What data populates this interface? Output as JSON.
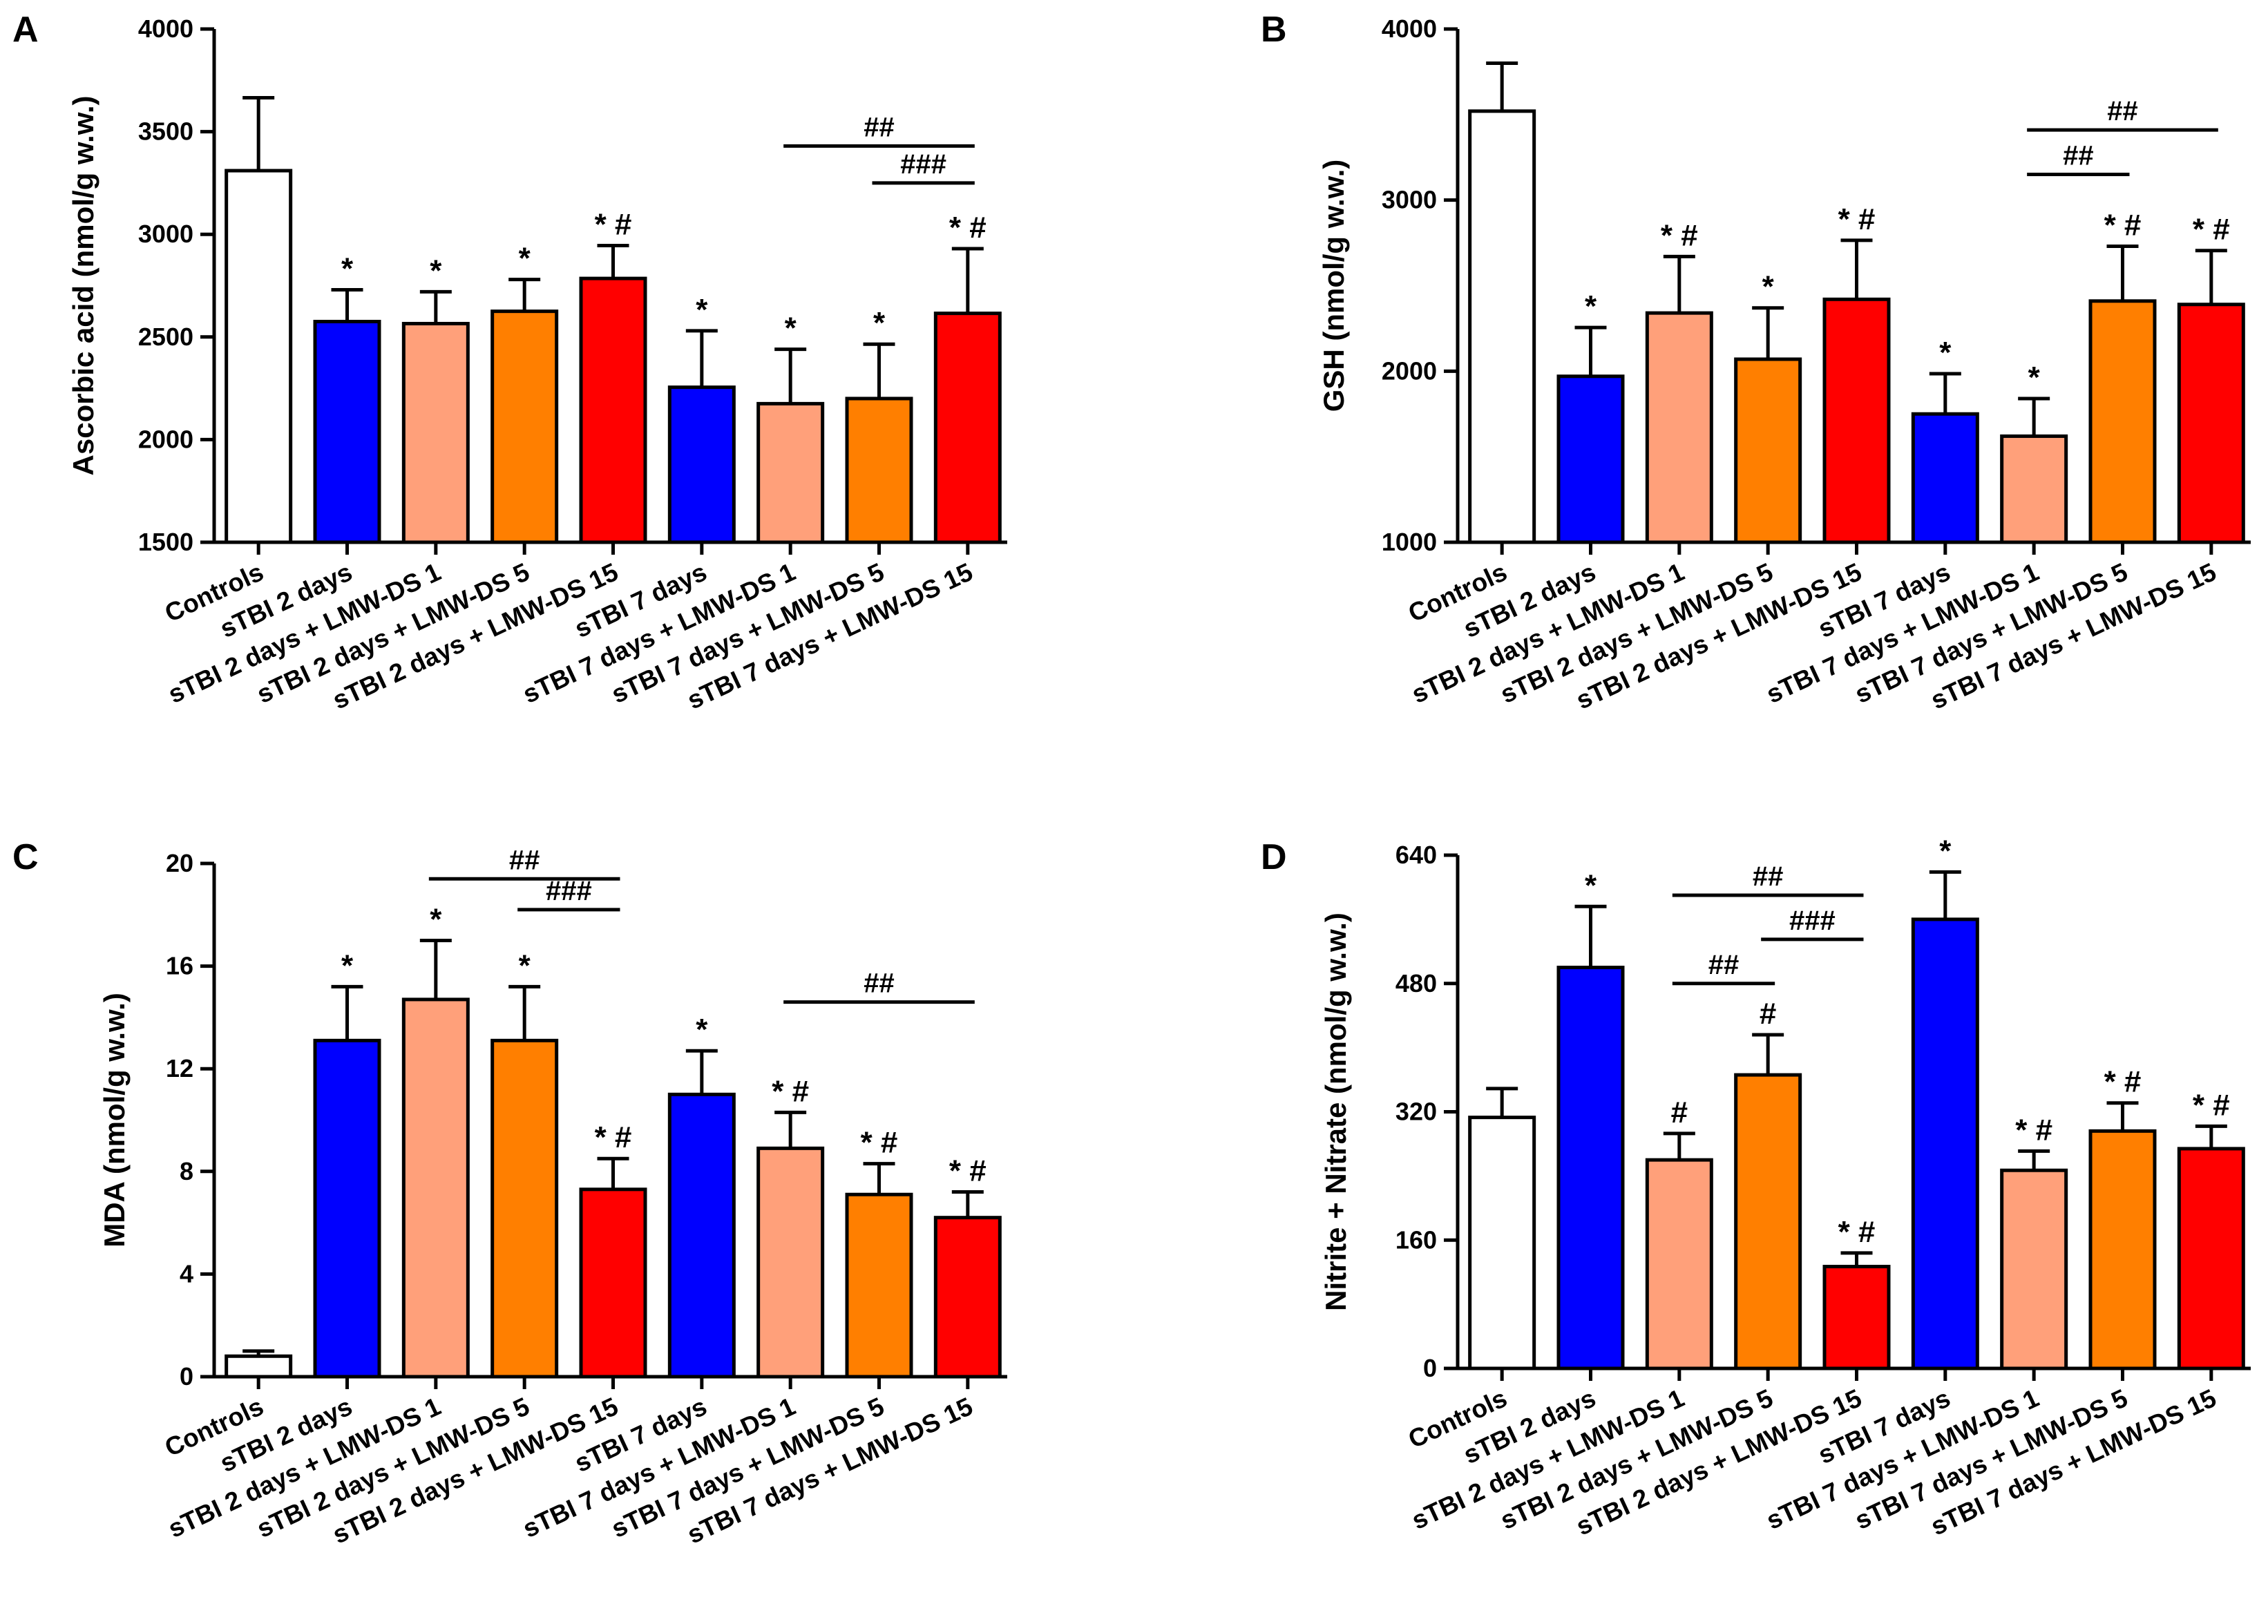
{
  "figure": {
    "categories": [
      "Controls",
      "sTBI 2 days",
      "sTBI 2 days + LMW-DS 1",
      "sTBI 2 days + LMW-DS 5",
      "sTBI 2 days + LMW-DS 15",
      "sTBI 7 days",
      "sTBI 7 days + LMW-DS 1",
      "sTBI 7 days + LMW-DS 5",
      "sTBI 7 days + LMW-DS 15"
    ],
    "colors": [
      "#ffffff",
      "#0000ff",
      "#ffa07a",
      "#ff7f00",
      "#ff0000",
      "#0000ff",
      "#ffa07a",
      "#ff7f00",
      "#ff0000"
    ]
  },
  "chart_data": [
    {
      "panel": "A",
      "type": "bar",
      "ylabel": "Ascorbic acid (nmol/g w.w.)",
      "ylim": [
        1500,
        4000
      ],
      "yticks": [
        1500,
        2000,
        2500,
        3000,
        3500,
        4000
      ],
      "values": [
        3310,
        2575,
        2565,
        2625,
        2785,
        2255,
        2175,
        2200,
        2615
      ],
      "errors": [
        355,
        155,
        155,
        155,
        160,
        275,
        265,
        265,
        315
      ],
      "annotations": [
        "",
        "*",
        "*",
        "*",
        "* #",
        "*",
        "*",
        "*",
        "* #"
      ],
      "brackets": [
        {
          "from": 6,
          "to": 8,
          "label": "##",
          "y": 3430
        },
        {
          "from": 7,
          "to": 8,
          "label": "###",
          "y": 3250
        }
      ]
    },
    {
      "panel": "B",
      "type": "bar",
      "ylabel": "GSH (nmol/g w.w.)",
      "ylim": [
        1000,
        4000
      ],
      "yticks": [
        1000,
        2000,
        3000,
        4000
      ],
      "values": [
        3520,
        1970,
        2340,
        2070,
        2420,
        1750,
        1620,
        2410,
        2390
      ],
      "errors": [
        280,
        285,
        330,
        300,
        345,
        235,
        220,
        320,
        315
      ],
      "annotations": [
        "",
        "*",
        "* #",
        "*",
        "* #",
        "*",
        "*",
        "* #",
        "* #"
      ],
      "brackets": [
        {
          "from": 6,
          "to": 8,
          "label": "##",
          "y": 3410
        },
        {
          "from": 6,
          "to": 7,
          "label": "##",
          "y": 3150
        }
      ]
    },
    {
      "panel": "C",
      "type": "bar",
      "ylabel": "MDA (nmol/g w.w.)",
      "ylim": [
        0,
        20
      ],
      "yticks": [
        0,
        4,
        8,
        12,
        16,
        20
      ],
      "values": [
        0.8,
        13.1,
        14.7,
        13.1,
        7.3,
        11.0,
        8.9,
        7.1,
        6.2
      ],
      "errors": [
        0.2,
        2.1,
        2.3,
        2.1,
        1.2,
        1.7,
        1.4,
        1.2,
        1.0
      ],
      "annotations": [
        "",
        "*",
        "*",
        "*",
        "* #",
        "*",
        "* #",
        "* #",
        "* #"
      ],
      "brackets": [
        {
          "from": 2,
          "to": 4,
          "label": "##",
          "y": 19.4
        },
        {
          "from": 3,
          "to": 4,
          "label": "###",
          "y": 18.2
        },
        {
          "from": 6,
          "to": 8,
          "label": "##",
          "y": 14.6
        }
      ]
    },
    {
      "panel": "D",
      "type": "bar",
      "ylabel": "Nitrite + Nitrate (nmol/g w.w.)",
      "ylim": [
        0,
        640
      ],
      "yticks": [
        0,
        160,
        320,
        480,
        640
      ],
      "values": [
        313,
        500,
        260,
        366,
        127,
        560,
        247,
        296,
        274
      ],
      "errors": [
        36,
        76,
        33,
        50,
        17,
        59,
        24,
        35,
        28
      ],
      "annotations": [
        "",
        "*",
        "#",
        "#",
        "* #",
        "*",
        "* #",
        "* #",
        "* #"
      ],
      "brackets": [
        {
          "from": 2,
          "to": 4,
          "label": "##",
          "y": 590
        },
        {
          "from": 3,
          "to": 4,
          "label": "###",
          "y": 535
        },
        {
          "from": 2,
          "to": 3,
          "label": "##",
          "y": 480
        }
      ]
    }
  ]
}
